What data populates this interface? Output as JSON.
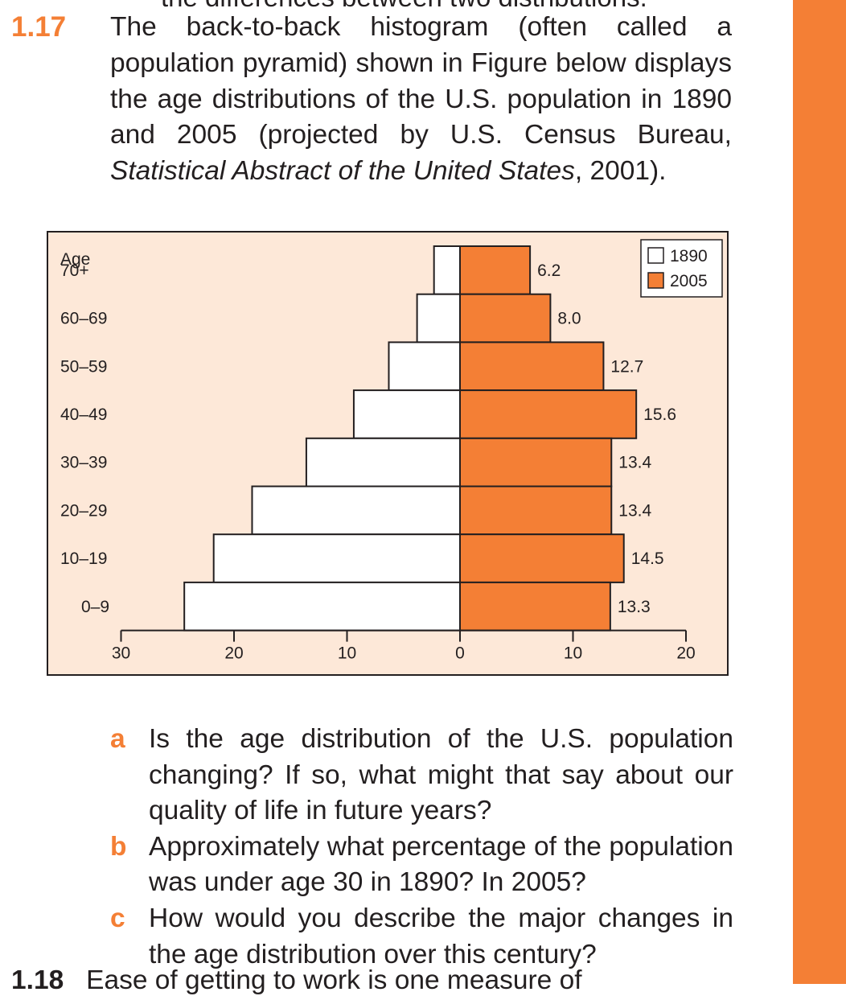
{
  "colors": {
    "accent": "#f47f35",
    "figure_bg": "#fde8d8",
    "bar_1890": "#ffffff",
    "bar_2005": "#f47f35",
    "ink": "#231f20"
  },
  "prev_problem_fragment": "the differences between two distributions.",
  "problem": {
    "number": "1.17",
    "text_before": "The back-to-back histogram (often called a population pyramid) shown in Figure below displays the age distributions of the U.S. population in 1890 and 2005 (projected by U.S. Census Bureau, ",
    "source_italic": "Statistical Abstract of the United States",
    "text_after": ", 2001)."
  },
  "chart_data": {
    "type": "bar",
    "orientation": "back-to-back horizontal",
    "title": "",
    "ylabel": "Age",
    "xlabel": "",
    "categories": [
      "70+",
      "60–69",
      "50–59",
      "40–49",
      "30–39",
      "20–29",
      "10–19",
      "0–9"
    ],
    "series": [
      {
        "name": "1890",
        "side": "left",
        "values": [
          2.3,
          3.8,
          6.3,
          9.4,
          13.6,
          18.4,
          21.8,
          24.4
        ],
        "labeled": false
      },
      {
        "name": "2005",
        "side": "right",
        "values": [
          6.2,
          8.0,
          12.7,
          15.6,
          13.4,
          13.4,
          14.5,
          13.3
        ],
        "labeled": true
      }
    ],
    "data_labels": [
      "6.2",
      "8.0",
      "12.7",
      "15.6",
      "13.4",
      "13.4",
      "14.5",
      "13.3"
    ],
    "x_ticks_left": [
      "30",
      "20",
      "10"
    ],
    "x_ticks_center": "0",
    "x_ticks_right": [
      "10",
      "20"
    ],
    "xlim_left": [
      0,
      30
    ],
    "xlim_right": [
      0,
      20
    ],
    "legend": {
      "position": "top-right",
      "entries": [
        "1890",
        "2005"
      ]
    },
    "grid": false
  },
  "parts": [
    {
      "label": "a",
      "text": "Is the age distribution of the U.S. population changing? If so, what might that say about our quality of life in future years?"
    },
    {
      "label": "b",
      "text": "Approximately what percentage of the population was under age 30 in 1890? In 2005?"
    },
    {
      "label": "c",
      "text": "How would you describe the major changes in the age distribution over this century?"
    }
  ],
  "next_problem_fragment": {
    "number": "1.18",
    "text": "Ease of getting to work is one measure of"
  }
}
